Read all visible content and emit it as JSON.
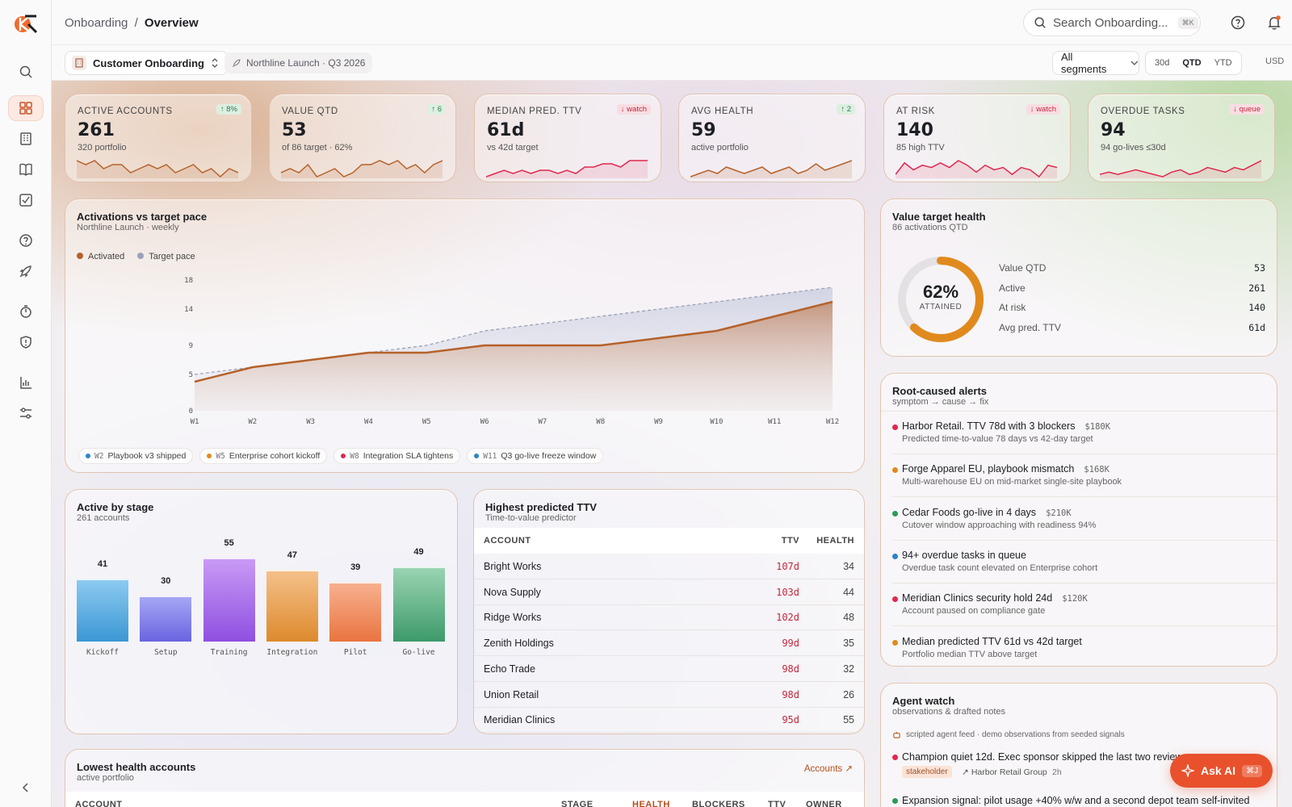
{
  "breadcrumb": {
    "parent": "Onboarding",
    "separator": "/",
    "current": "Overview"
  },
  "search": {
    "placeholder": "Search Onboarding...",
    "shortcut": "⌘K"
  },
  "filters": {
    "workspace": "Customer Onboarding",
    "launch": "Northline Launch · Q3 2026",
    "segment": "All segments",
    "ranges": [
      "30d",
      "QTD",
      "YTD"
    ],
    "active_range": "QTD",
    "currency": "USD"
  },
  "kpis": [
    {
      "label": "ACTIVE ACCOUNTS",
      "value": "261",
      "sub": "320 portfolio",
      "badge": "↑ 8%",
      "trend": "up",
      "spark": [
        6,
        5,
        6,
        4,
        5,
        5,
        3,
        4,
        5,
        4,
        5,
        3,
        4,
        5,
        3,
        4,
        2,
        4,
        3
      ]
    },
    {
      "label": "VALUE QTD",
      "value": "53",
      "sub": "of 86 target · 62%",
      "badge": "↑ 6",
      "trend": "up",
      "spark": [
        3,
        4,
        3,
        5,
        2,
        3,
        4,
        2,
        3,
        5,
        5,
        6,
        5,
        6,
        4,
        5,
        3,
        5,
        6
      ]
    },
    {
      "label": "MEDIAN PRED. TTV",
      "value": "61d",
      "sub": "vs 42d target",
      "badge": "↓ watch",
      "trend": "down",
      "spark": [
        2,
        3,
        4,
        3,
        4,
        3,
        4,
        4,
        3,
        4,
        3,
        5,
        5,
        6,
        6,
        5,
        7,
        7,
        7
      ]
    },
    {
      "label": "AVG HEALTH",
      "value": "59",
      "sub": "active portfolio",
      "badge": "↑ 2",
      "trend": "up",
      "spark": [
        2,
        3,
        4,
        3,
        5,
        4,
        3,
        4,
        5,
        3,
        4,
        5,
        3,
        4,
        6,
        4,
        5,
        6,
        7
      ]
    },
    {
      "label": "AT RISK",
      "value": "140",
      "sub": "85 high TTV",
      "badge": "↓ watch",
      "trend": "down",
      "spark": [
        3,
        8,
        5,
        7,
        6,
        8,
        6,
        9,
        7,
        4,
        7,
        5,
        6,
        3,
        6,
        5,
        2,
        7,
        6
      ]
    },
    {
      "label": "OVERDUE TASKS",
      "value": "94",
      "sub": "94 go-lives ≤30d",
      "badge": "↓ queue",
      "trend": "down",
      "spark": [
        3,
        4,
        3,
        4,
        5,
        4,
        3,
        2,
        4,
        5,
        3,
        4,
        6,
        5,
        4,
        6,
        5,
        7,
        9
      ]
    }
  ],
  "activations": {
    "title": "Activations vs target pace",
    "subtitle": "Northline Launch · weekly"
  },
  "chart_data": {
    "type": "line",
    "x": [
      "W1",
      "W2",
      "W3",
      "W4",
      "W5",
      "W6",
      "W7",
      "W8",
      "W9",
      "W10",
      "W11",
      "W12"
    ],
    "series": [
      {
        "name": "Activated",
        "color": "#b5612a",
        "values": [
          4,
          6,
          7,
          8,
          8,
          9,
          9,
          9,
          10,
          11,
          13,
          15
        ]
      },
      {
        "name": "Target pace",
        "color": "#9aa3b8",
        "values": [
          5,
          6,
          7,
          8,
          9,
          11,
          12,
          13,
          14,
          15,
          16,
          17
        ]
      }
    ],
    "yticks": [
      0,
      5,
      9,
      14,
      18
    ],
    "ylim": [
      0,
      18
    ]
  },
  "milestones": [
    {
      "week": "W2",
      "label": "Playbook v3 shipped",
      "color": "#2b85c4"
    },
    {
      "week": "W5",
      "label": "Enterprise cohort kickoff",
      "color": "#e08a1e"
    },
    {
      "week": "W8",
      "label": "Integration SLA tightens",
      "color": "#e0284f"
    },
    {
      "week": "W11",
      "label": "Q3 go-live freeze window",
      "color": "#2b85c4"
    }
  ],
  "value_health": {
    "title": "Value target health",
    "subtitle": "86 activations QTD",
    "percent": "62%",
    "percent_value": 0.62,
    "caption": "ATTAINED",
    "rows": [
      {
        "label": "Value QTD",
        "value": "53"
      },
      {
        "label": "Active",
        "value": "261"
      },
      {
        "label": "At risk",
        "value": "140"
      },
      {
        "label": "Avg pred. TTV",
        "value": "61d"
      }
    ]
  },
  "alerts": {
    "title": "Root-caused alerts",
    "subtitle": "symptom → cause → fix",
    "items": [
      {
        "title": "Harbor Retail. TTV 78d with 3 blockers",
        "amount": "$180K",
        "sub": "Predicted time-to-value 78 days vs 42-day target",
        "color": "#e0284f"
      },
      {
        "title": "Forge Apparel EU, playbook mismatch",
        "amount": "$168K",
        "sub": "Multi-warehouse EU on mid-market single-site playbook",
        "color": "#e08a1e"
      },
      {
        "title": "Cedar Foods go-live in 4 days",
        "amount": "$210K",
        "sub": "Cutover window approaching with readiness 94%",
        "color": "#2d9a5a"
      },
      {
        "title": "94+ overdue tasks in queue",
        "amount": "",
        "sub": "Overdue task count elevated on Enterprise cohort",
        "color": "#2b85c4"
      },
      {
        "title": "Meridian Clinics security hold 24d",
        "amount": "$120K",
        "sub": "Account paused on compliance gate",
        "color": "#e0284f"
      },
      {
        "title": "Median predicted TTV 61d vs 42d target",
        "amount": "",
        "sub": "Portfolio median TTV above target",
        "color": "#e08a1e"
      }
    ]
  },
  "stages": {
    "title": "Active by stage",
    "subtitle": "261 accounts",
    "items": [
      {
        "label": "Kickoff",
        "value": 41,
        "color_top": "#8ccaf0",
        "color_bottom": "#3b97d4"
      },
      {
        "label": "Setup",
        "value": 30,
        "color_top": "#a6a6f5",
        "color_bottom": "#6a64e0"
      },
      {
        "label": "Training",
        "value": 55,
        "color_top": "#c99af5",
        "color_bottom": "#8e4fe0"
      },
      {
        "label": "Integration",
        "value": 47,
        "color_top": "#f5c08a",
        "color_bottom": "#dd8a2c"
      },
      {
        "label": "Pilot",
        "value": 39,
        "color_top": "#f7b08f",
        "color_bottom": "#ea7440"
      },
      {
        "label": "Go-live",
        "value": 49,
        "color_top": "#9ad4b2",
        "color_bottom": "#3d9a6a"
      }
    ],
    "max": 55
  },
  "ttv": {
    "title": "Highest predicted TTV",
    "subtitle": "Time-to-value predictor",
    "columns": [
      "ACCOUNT",
      "TTV",
      "HEALTH"
    ],
    "rows": [
      {
        "account": "Bright Works",
        "ttv": "107d",
        "health": "34"
      },
      {
        "account": "Nova Supply",
        "ttv": "103d",
        "health": "44"
      },
      {
        "account": "Ridge Works",
        "ttv": "102d",
        "health": "48"
      },
      {
        "account": "Zenith Holdings",
        "ttv": "99d",
        "health": "35"
      },
      {
        "account": "Echo Trade",
        "ttv": "98d",
        "health": "32"
      },
      {
        "account": "Union Retail",
        "ttv": "98d",
        "health": "26"
      },
      {
        "account": "Meridian Clinics",
        "ttv": "95d",
        "health": "55"
      }
    ]
  },
  "lowest": {
    "title": "Lowest health accounts",
    "subtitle": "active portfolio",
    "link": "Accounts ↗",
    "columns": [
      "ACCOUNT",
      "STAGE",
      "HEALTH",
      "BLOCKERS",
      "TTV",
      "OWNER"
    ]
  },
  "agent": {
    "title": "Agent watch",
    "subtitle": "observations & drafted notes",
    "feed": "scripted agent feed · demo observations from seeded signals",
    "items": [
      {
        "title": "Champion quiet 12d. Exec sponsor skipped the last two reviews",
        "tag": "stakeholder",
        "account": "Harbor Retail Group",
        "time": "2h",
        "color": "#e0284f"
      },
      {
        "title": "Expansion signal: pilot usage +40% w/w and a second depot team self-invited",
        "color": "#2d9a5a"
      }
    ]
  },
  "ask_ai": {
    "label": "Ask AI",
    "shortcut": "⌘J"
  }
}
